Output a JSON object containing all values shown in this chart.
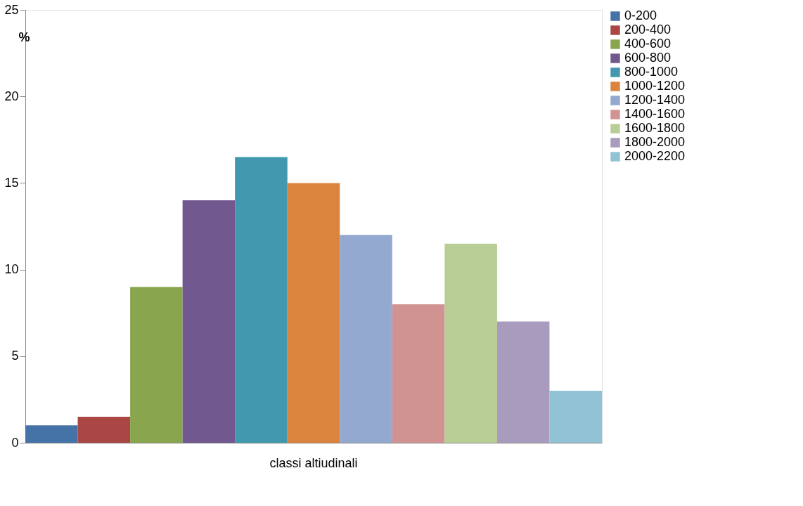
{
  "chart_data": {
    "type": "bar",
    "categories": [
      "classi altiudinali"
    ],
    "ylabel": "%",
    "ylim": [
      0,
      25
    ],
    "yticks": [
      0,
      5,
      10,
      15,
      20,
      25
    ],
    "grid": false,
    "legend": "right",
    "series": [
      {
        "name": "0-200",
        "color": "#4572a7",
        "values": [
          1
        ]
      },
      {
        "name": "200-400",
        "color": "#aa4643",
        "values": [
          1.5
        ]
      },
      {
        "name": "400-600",
        "color": "#89a54e",
        "values": [
          9
        ]
      },
      {
        "name": "600-800",
        "color": "#71588f",
        "values": [
          14
        ]
      },
      {
        "name": "800-1000",
        "color": "#4198af",
        "values": [
          16.5
        ]
      },
      {
        "name": "1000-1200",
        "color": "#db843d",
        "values": [
          15
        ]
      },
      {
        "name": "1200-1400",
        "color": "#93a9cf",
        "values": [
          12
        ]
      },
      {
        "name": "1400-1600",
        "color": "#d19392",
        "values": [
          8
        ]
      },
      {
        "name": "1600-1800",
        "color": "#b9cd96",
        "values": [
          11.5
        ]
      },
      {
        "name": "1800-2000",
        "color": "#a99bbd",
        "values": [
          7
        ]
      },
      {
        "name": "2000-2200",
        "color": "#92c3d5",
        "values": [
          3
        ]
      }
    ]
  }
}
